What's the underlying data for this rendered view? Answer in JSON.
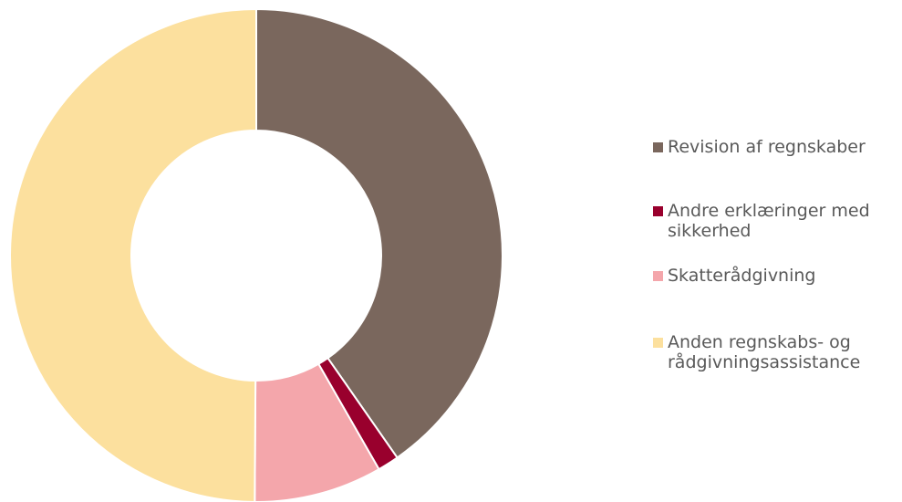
{
  "chart_data": {
    "type": "pie",
    "donut": true,
    "title": "",
    "slices": [
      {
        "label": "Revision af regnskaber",
        "value": 40.3,
        "color": "#7A675D"
      },
      {
        "label": "Andre erklæringer med sikkerhed",
        "value": 1.4,
        "color": "#99002D"
      },
      {
        "label": "Skatterådgivning",
        "value": 8.4,
        "color": "#F4A6AB"
      },
      {
        "label": "Anden regnskabs- og rådgivningsassistance",
        "value": 49.9,
        "color": "#FCE09E"
      }
    ],
    "legend_position": "right"
  }
}
